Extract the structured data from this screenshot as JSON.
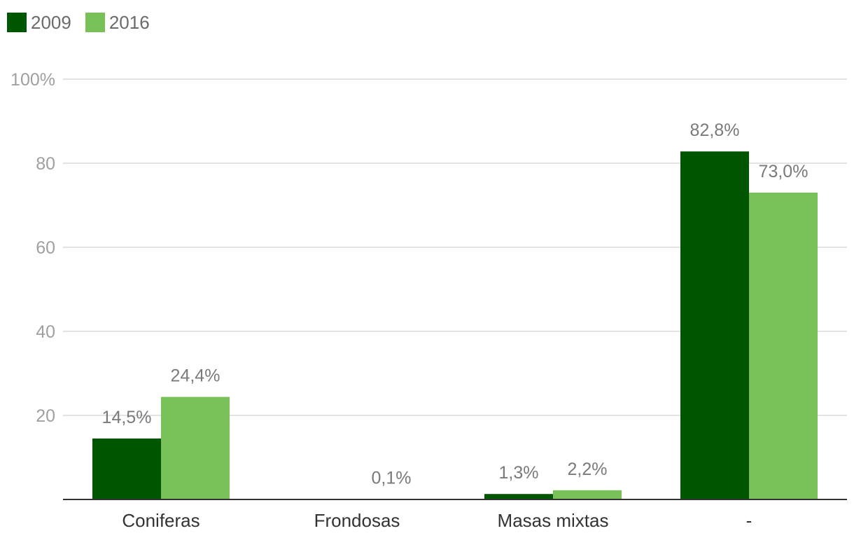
{
  "chart_data": {
    "type": "bar",
    "categories": [
      "Coniferas",
      "Frondosas",
      "Masas mixtas",
      "-"
    ],
    "series": [
      {
        "name": "2009",
        "color": "#005500",
        "values": [
          14.5,
          null,
          1.3,
          82.8
        ],
        "labels": [
          "14,5%",
          "",
          "1,3%",
          "82,8%"
        ]
      },
      {
        "name": "2016",
        "color": "#78c159",
        "values": [
          24.4,
          0.1,
          2.2,
          73.0
        ],
        "labels": [
          "24,4%",
          "0,1%",
          "2,2%",
          "73,0%"
        ]
      }
    ],
    "yticks": [
      {
        "value": 20,
        "label": "20"
      },
      {
        "value": 40,
        "label": "40"
      },
      {
        "value": 60,
        "label": "60"
      },
      {
        "value": 80,
        "label": "80"
      },
      {
        "value": 100,
        "label": "100%"
      }
    ],
    "ylim": [
      0,
      100
    ],
    "grid": true,
    "legend_position": "top-left"
  }
}
